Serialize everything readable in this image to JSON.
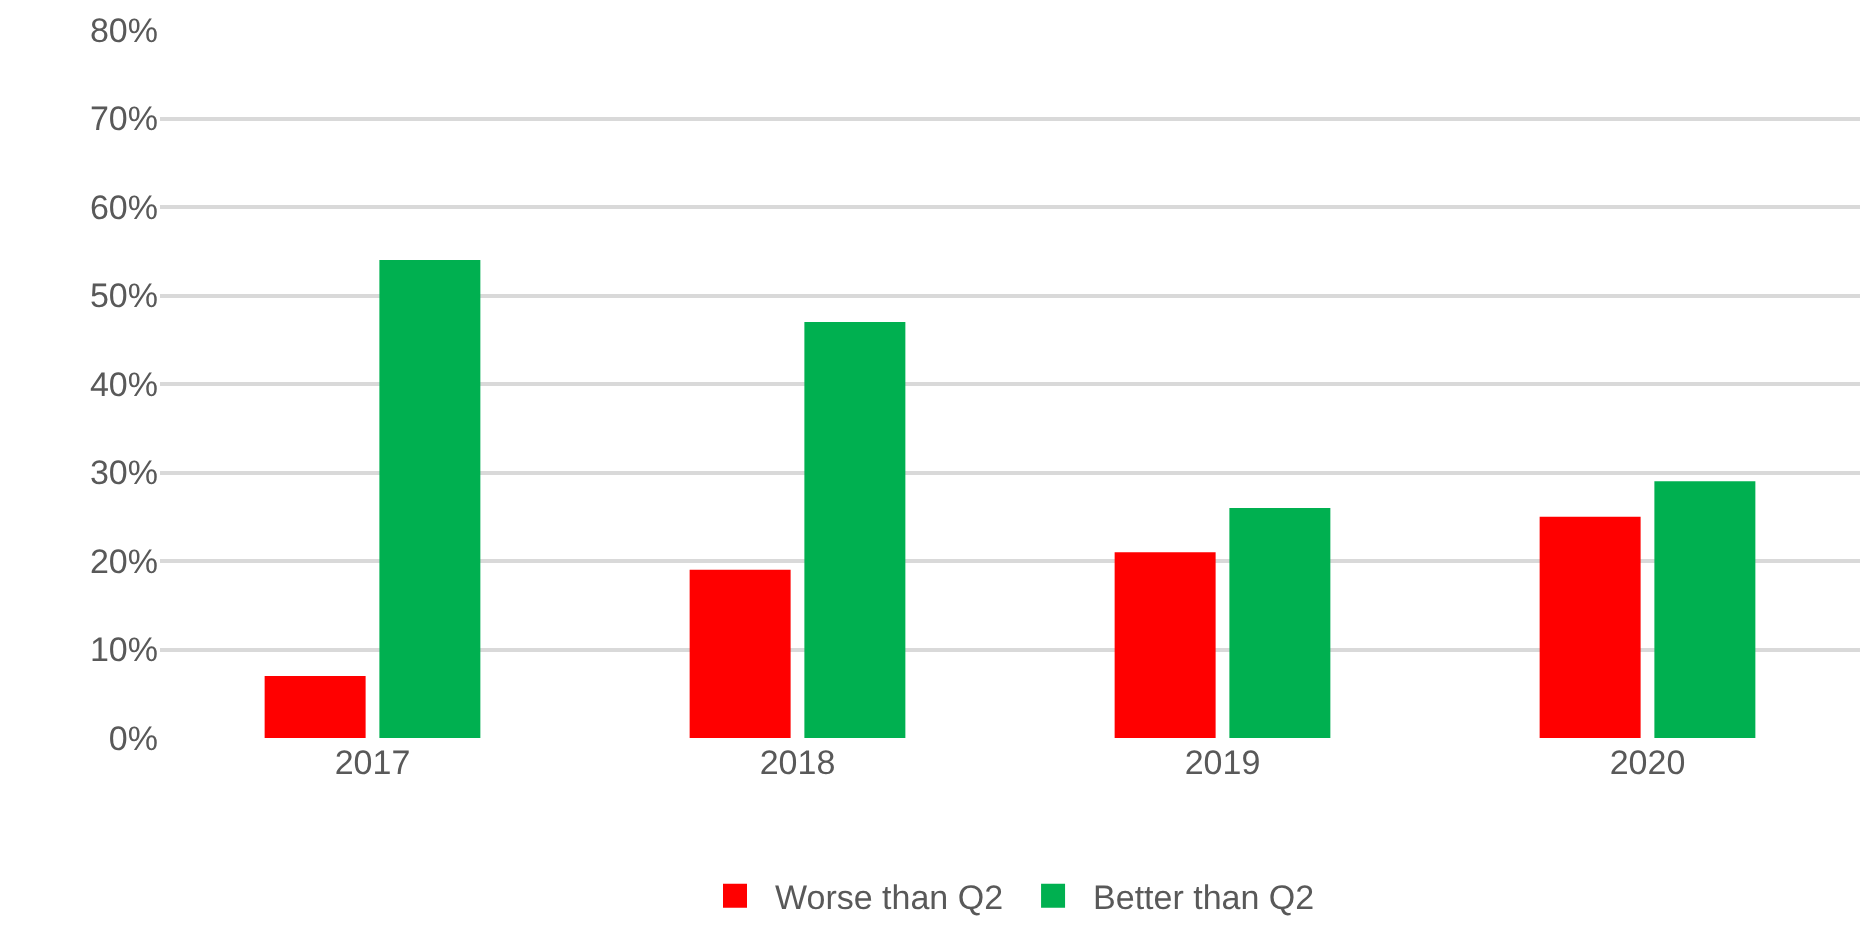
{
  "chart_data": {
    "type": "bar",
    "categories": [
      "2017",
      "2018",
      "2019",
      "2020"
    ],
    "series": [
      {
        "name": "Worse than Q2",
        "color": "#ff0000",
        "values": [
          7,
          19,
          21,
          25
        ]
      },
      {
        "name": "Better than Q2",
        "color": "#00b050",
        "values": [
          54,
          47,
          26,
          29
        ]
      }
    ],
    "ylim": [
      0,
      80
    ],
    "yticks": [
      {
        "value": 0,
        "label": "0%"
      },
      {
        "value": 10,
        "label": "10%"
      },
      {
        "value": 20,
        "label": "20%"
      },
      {
        "value": 30,
        "label": "30%"
      },
      {
        "value": 40,
        "label": "40%"
      },
      {
        "value": 50,
        "label": "50%"
      },
      {
        "value": 60,
        "label": "60%"
      },
      {
        "value": 70,
        "label": "70%"
      },
      {
        "value": 80,
        "label": "80%"
      }
    ],
    "grid": "y",
    "legend": "bottom"
  }
}
